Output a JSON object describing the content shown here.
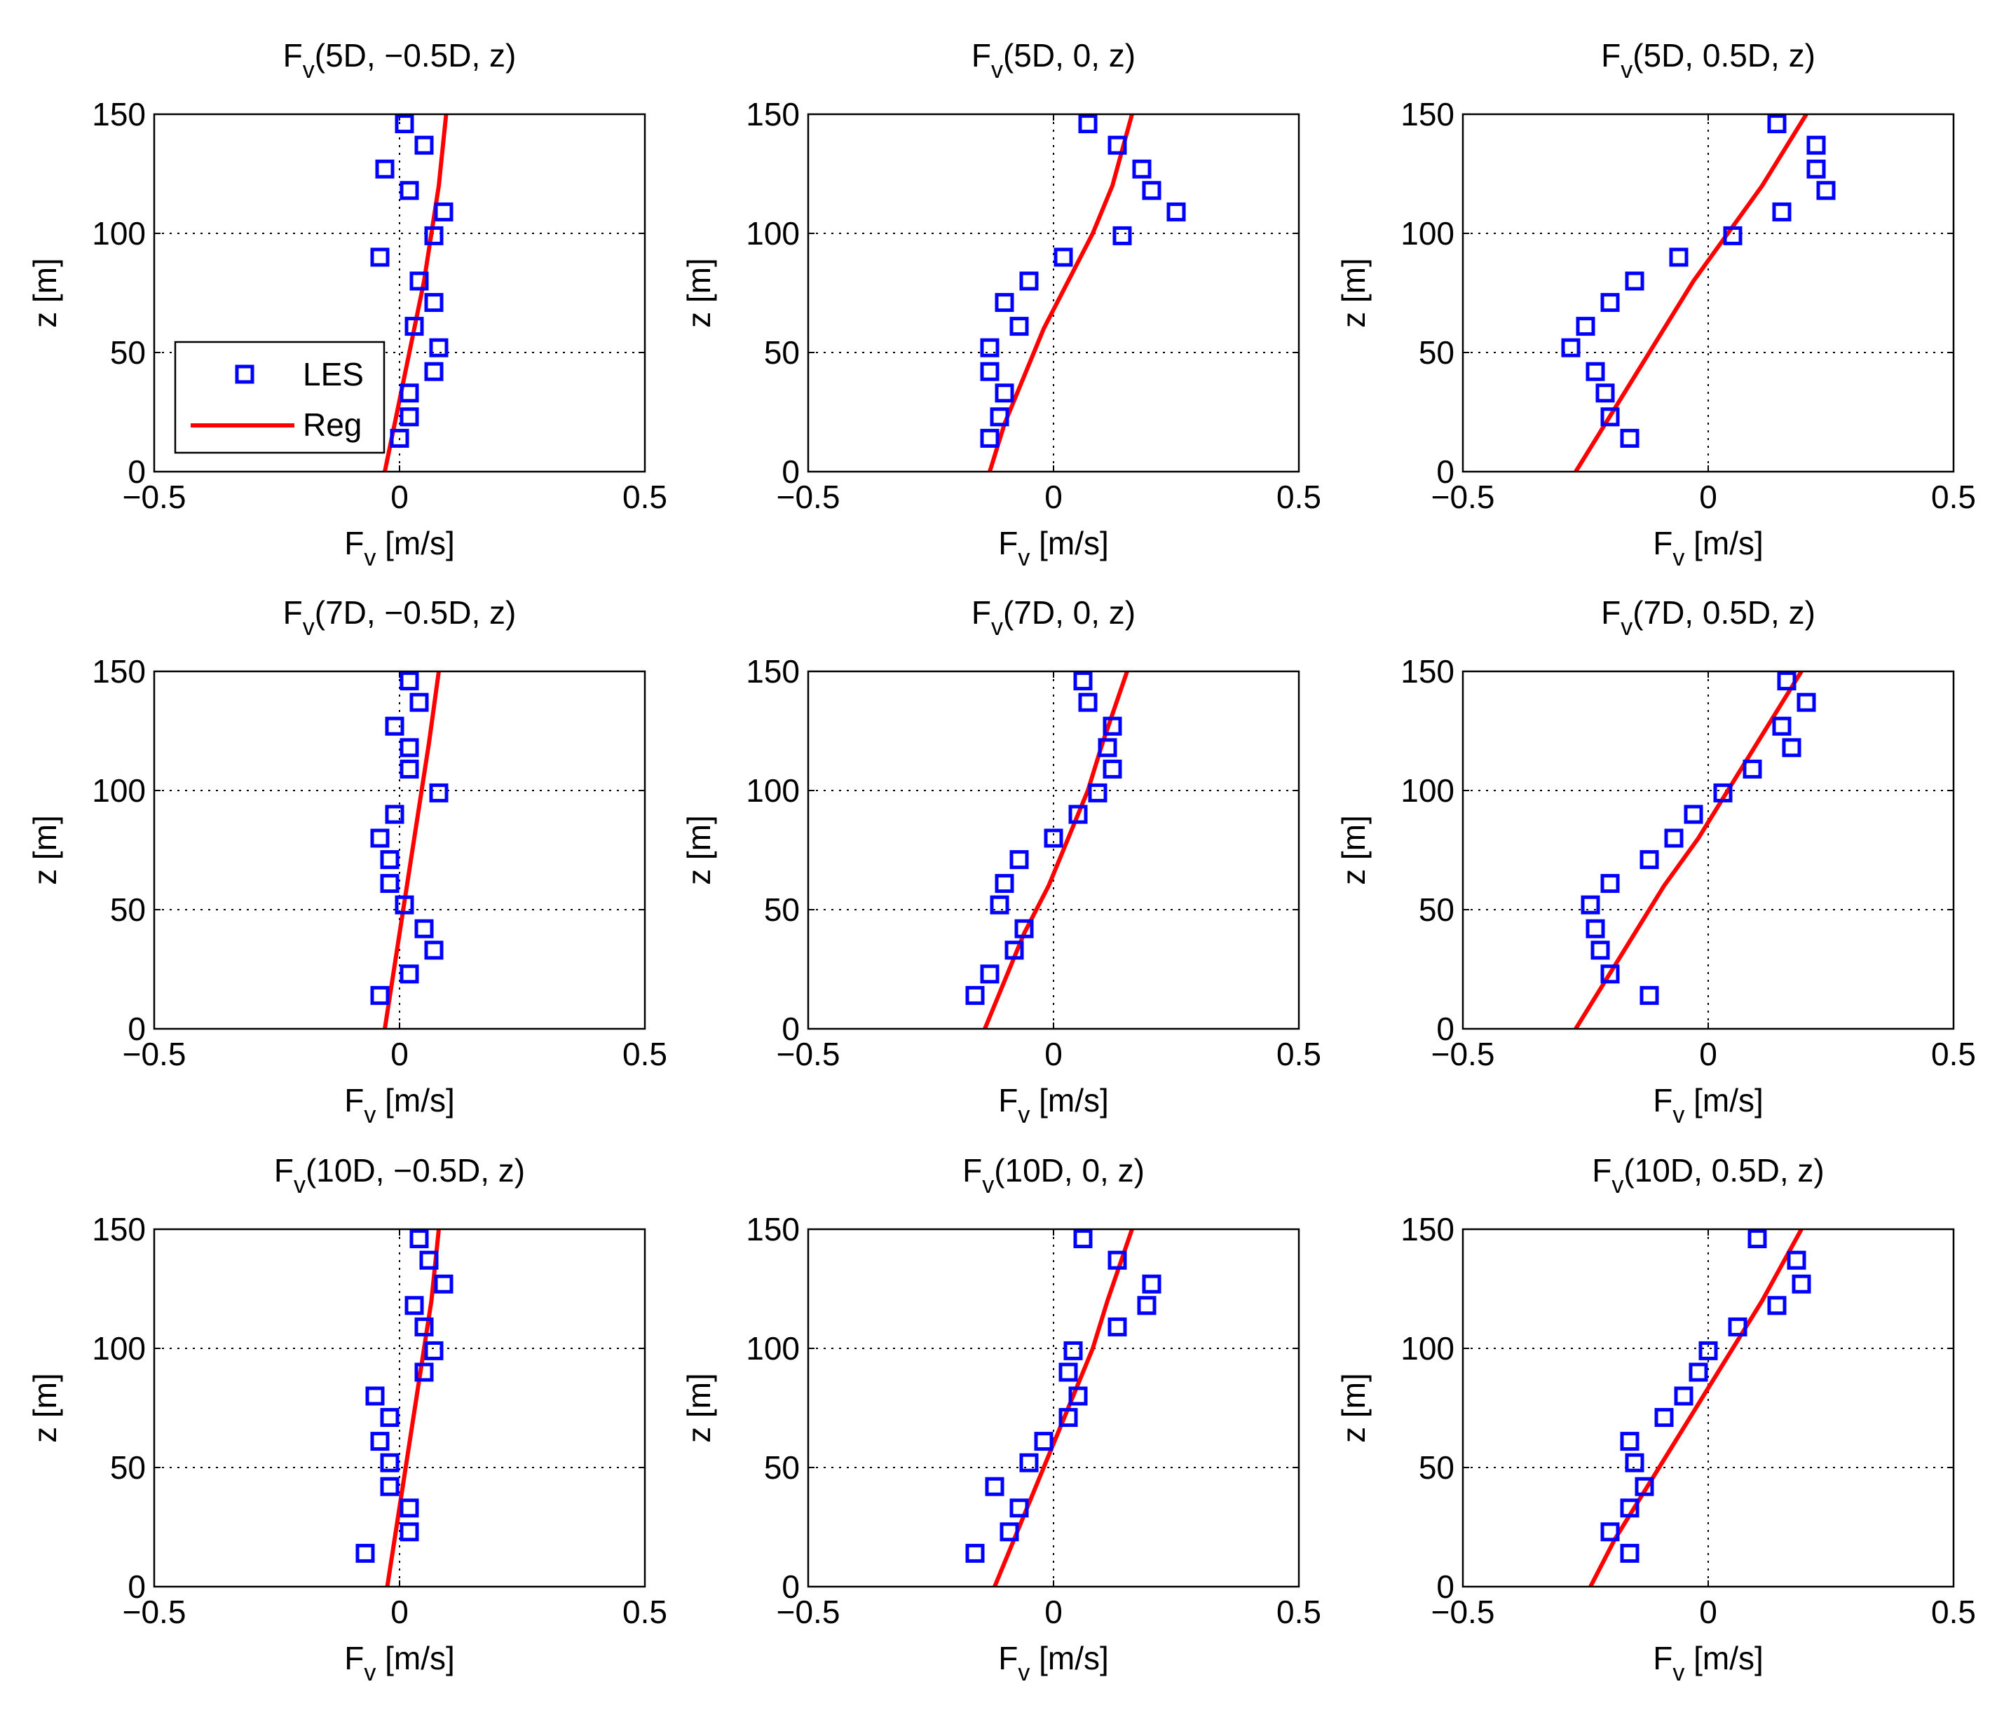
{
  "colors": {
    "les": "#0000ff",
    "reg": "#ff0000",
    "axis": "#000000",
    "grid": "#000000"
  },
  "legend": {
    "les_label": "LES",
    "reg_label": "Reg",
    "placement": "inside-left of first panel",
    "panel_index": 0
  },
  "chart_data": [
    {
      "type": "scatter",
      "title_letter": "F",
      "title_sub": "v",
      "title_args": "(5D, −0.5D, z)",
      "xlabel_letter": "F",
      "xlabel_sub": "v",
      "xlabel_unit": " [m/s]",
      "ylabel": "z [m]",
      "xlim": [
        -0.5,
        0.5
      ],
      "ylim": [
        0,
        150
      ],
      "xticks": [
        -0.5,
        0,
        0.5
      ],
      "xtick_labels": [
        "−0.5",
        "0",
        "0.5"
      ],
      "yticks": [
        0,
        50,
        100,
        150
      ],
      "ytick_labels": [
        "0",
        "50",
        "100",
        "150"
      ],
      "grid": "dotted lines at x=0 and y=50,100",
      "series": [
        {
          "name": "LES",
          "marker": "square",
          "x": [
            0.0,
            0.02,
            0.02,
            0.07,
            0.08,
            0.03,
            0.07,
            0.04,
            -0.04,
            0.07,
            0.09,
            0.02,
            -0.03,
            0.05,
            0.01
          ],
          "y": [
            14,
            23,
            33,
            42,
            52,
            61,
            71,
            80,
            90,
            99,
            109,
            118,
            127,
            137,
            146
          ]
        },
        {
          "name": "Reg",
          "style": "line",
          "x": [
            -0.03,
            -0.01,
            0.01,
            0.03,
            0.05,
            0.065,
            0.08,
            0.095
          ],
          "y": [
            0,
            20,
            40,
            60,
            80,
            100,
            120,
            150
          ]
        }
      ]
    },
    {
      "type": "scatter",
      "title_letter": "F",
      "title_sub": "v",
      "title_args": "(5D, 0, z)",
      "xlabel_letter": "F",
      "xlabel_sub": "v",
      "xlabel_unit": " [m/s]",
      "ylabel": "z [m]",
      "xlim": [
        -0.5,
        0.5
      ],
      "ylim": [
        0,
        150
      ],
      "xticks": [
        -0.5,
        0,
        0.5
      ],
      "xtick_labels": [
        "−0.5",
        "0",
        "0.5"
      ],
      "yticks": [
        0,
        50,
        100,
        150
      ],
      "ytick_labels": [
        "0",
        "50",
        "100",
        "150"
      ],
      "grid": "dotted lines at x=0 and y=50,100",
      "series": [
        {
          "name": "LES",
          "marker": "square",
          "x": [
            -0.13,
            -0.11,
            -0.1,
            -0.13,
            -0.13,
            -0.07,
            -0.1,
            -0.05,
            0.02,
            0.14,
            0.25,
            0.2,
            0.18,
            0.13,
            0.07
          ],
          "y": [
            14,
            23,
            33,
            42,
            52,
            61,
            71,
            80,
            90,
            99,
            109,
            118,
            127,
            137,
            146
          ]
        },
        {
          "name": "Reg",
          "style": "line",
          "x": [
            -0.13,
            -0.1,
            -0.06,
            -0.02,
            0.03,
            0.08,
            0.12,
            0.16
          ],
          "y": [
            0,
            20,
            40,
            60,
            80,
            100,
            120,
            150
          ]
        }
      ]
    },
    {
      "type": "scatter",
      "title_letter": "F",
      "title_sub": "v",
      "title_args": "(5D, 0.5D, z)",
      "xlabel_letter": "F",
      "xlabel_sub": "v",
      "xlabel_unit": " [m/s]",
      "ylabel": "z [m]",
      "xlim": [
        -0.5,
        0.5
      ],
      "ylim": [
        0,
        150
      ],
      "xticks": [
        -0.5,
        0,
        0.5
      ],
      "xtick_labels": [
        "−0.5",
        "0",
        "0.5"
      ],
      "yticks": [
        0,
        50,
        100,
        150
      ],
      "ytick_labels": [
        "0",
        "50",
        "100",
        "150"
      ],
      "grid": "dotted lines at x=0 and y=50,100",
      "series": [
        {
          "name": "LES",
          "marker": "square",
          "x": [
            -0.16,
            -0.2,
            -0.21,
            -0.23,
            -0.28,
            -0.25,
            -0.2,
            -0.15,
            -0.06,
            0.05,
            0.15,
            0.24,
            0.22,
            0.22,
            0.14
          ],
          "y": [
            14,
            23,
            33,
            42,
            52,
            61,
            71,
            80,
            90,
            99,
            109,
            118,
            127,
            137,
            146
          ]
        },
        {
          "name": "Reg",
          "style": "line",
          "x": [
            -0.27,
            -0.21,
            -0.15,
            -0.09,
            -0.03,
            0.04,
            0.11,
            0.2
          ],
          "y": [
            0,
            20,
            40,
            60,
            80,
            100,
            120,
            150
          ]
        }
      ]
    },
    {
      "type": "scatter",
      "title_letter": "F",
      "title_sub": "v",
      "title_args": "(7D, −0.5D, z)",
      "xlabel_letter": "F",
      "xlabel_sub": "v",
      "xlabel_unit": " [m/s]",
      "ylabel": "z [m]",
      "xlim": [
        -0.5,
        0.5
      ],
      "ylim": [
        0,
        150
      ],
      "xticks": [
        -0.5,
        0,
        0.5
      ],
      "xtick_labels": [
        "−0.5",
        "0",
        "0.5"
      ],
      "yticks": [
        0,
        50,
        100,
        150
      ],
      "ytick_labels": [
        "0",
        "50",
        "100",
        "150"
      ],
      "grid": "dotted lines at x=0 and y=50,100",
      "series": [
        {
          "name": "LES",
          "marker": "square",
          "x": [
            -0.04,
            0.02,
            0.07,
            0.05,
            0.01,
            -0.02,
            -0.02,
            -0.04,
            -0.01,
            0.08,
            0.02,
            0.02,
            -0.01,
            0.04,
            0.02
          ],
          "y": [
            14,
            23,
            33,
            42,
            52,
            61,
            71,
            80,
            90,
            99,
            109,
            118,
            127,
            137,
            146
          ]
        },
        {
          "name": "Reg",
          "style": "line",
          "x": [
            -0.03,
            -0.015,
            0.0,
            0.015,
            0.03,
            0.045,
            0.06,
            0.08
          ],
          "y": [
            0,
            20,
            40,
            60,
            80,
            100,
            120,
            150
          ]
        }
      ]
    },
    {
      "type": "scatter",
      "title_letter": "F",
      "title_sub": "v",
      "title_args": "(7D, 0, z)",
      "xlabel_letter": "F",
      "xlabel_sub": "v",
      "xlabel_unit": " [m/s]",
      "ylabel": "z [m]",
      "xlim": [
        -0.5,
        0.5
      ],
      "ylim": [
        0,
        150
      ],
      "xticks": [
        -0.5,
        0,
        0.5
      ],
      "xtick_labels": [
        "−0.5",
        "0",
        "0.5"
      ],
      "yticks": [
        0,
        50,
        100,
        150
      ],
      "ytick_labels": [
        "0",
        "50",
        "100",
        "150"
      ],
      "grid": "dotted lines at x=0 and y=50,100",
      "series": [
        {
          "name": "LES",
          "marker": "square",
          "x": [
            -0.16,
            -0.13,
            -0.08,
            -0.06,
            -0.11,
            -0.1,
            -0.07,
            0.0,
            0.05,
            0.09,
            0.12,
            0.11,
            0.12,
            0.07,
            0.06
          ],
          "y": [
            14,
            23,
            33,
            42,
            52,
            61,
            71,
            80,
            90,
            99,
            109,
            118,
            127,
            137,
            146
          ]
        },
        {
          "name": "Reg",
          "style": "line",
          "x": [
            -0.14,
            -0.1,
            -0.06,
            -0.01,
            0.03,
            0.07,
            0.1,
            0.15
          ],
          "y": [
            0,
            20,
            40,
            60,
            80,
            100,
            120,
            150
          ]
        }
      ]
    },
    {
      "type": "scatter",
      "title_letter": "F",
      "title_sub": "v",
      "title_args": "(7D, 0.5D, z)",
      "xlabel_letter": "F",
      "xlabel_sub": "v",
      "xlabel_unit": " [m/s]",
      "ylabel": "z [m]",
      "xlim": [
        -0.5,
        0.5
      ],
      "ylim": [
        0,
        150
      ],
      "xticks": [
        -0.5,
        0,
        0.5
      ],
      "xtick_labels": [
        "−0.5",
        "0",
        "0.5"
      ],
      "yticks": [
        0,
        50,
        100,
        150
      ],
      "ytick_labels": [
        "0",
        "50",
        "100",
        "150"
      ],
      "grid": "dotted lines at x=0 and y=50,100",
      "series": [
        {
          "name": "LES",
          "marker": "square",
          "x": [
            -0.12,
            -0.2,
            -0.22,
            -0.23,
            -0.24,
            -0.2,
            -0.12,
            -0.07,
            -0.03,
            0.03,
            0.09,
            0.17,
            0.15,
            0.2,
            0.16
          ],
          "y": [
            14,
            23,
            33,
            42,
            52,
            61,
            71,
            80,
            90,
            99,
            109,
            118,
            127,
            137,
            146
          ]
        },
        {
          "name": "Reg",
          "style": "line",
          "x": [
            -0.27,
            -0.21,
            -0.15,
            -0.09,
            -0.02,
            0.04,
            0.1,
            0.19
          ],
          "y": [
            0,
            20,
            40,
            60,
            80,
            100,
            120,
            150
          ]
        }
      ]
    },
    {
      "type": "scatter",
      "title_letter": "F",
      "title_sub": "v",
      "title_args": "(10D, −0.5D, z)",
      "xlabel_letter": "F",
      "xlabel_sub": "v",
      "xlabel_unit": " [m/s]",
      "ylabel": "z [m]",
      "xlim": [
        -0.5,
        0.5
      ],
      "ylim": [
        0,
        150
      ],
      "xticks": [
        -0.5,
        0,
        0.5
      ],
      "xtick_labels": [
        "−0.5",
        "0",
        "0.5"
      ],
      "yticks": [
        0,
        50,
        100,
        150
      ],
      "ytick_labels": [
        "0",
        "50",
        "100",
        "150"
      ],
      "grid": "dotted lines at x=0 and y=50,100",
      "series": [
        {
          "name": "LES",
          "marker": "square",
          "x": [
            -0.07,
            0.02,
            0.02,
            -0.02,
            -0.02,
            -0.04,
            -0.02,
            -0.05,
            0.05,
            0.07,
            0.05,
            0.03,
            0.09,
            0.06,
            0.04
          ],
          "y": [
            14,
            23,
            33,
            42,
            52,
            61,
            71,
            80,
            90,
            99,
            109,
            118,
            127,
            137,
            146
          ]
        },
        {
          "name": "Reg",
          "style": "line",
          "x": [
            -0.025,
            -0.01,
            0.005,
            0.02,
            0.035,
            0.05,
            0.065,
            0.08
          ],
          "y": [
            0,
            20,
            40,
            60,
            80,
            100,
            120,
            150
          ]
        }
      ]
    },
    {
      "type": "scatter",
      "title_letter": "F",
      "title_sub": "v",
      "title_args": "(10D, 0, z)",
      "xlabel_letter": "F",
      "xlabel_sub": "v",
      "xlabel_unit": " [m/s]",
      "ylabel": "z [m]",
      "xlim": [
        -0.5,
        0.5
      ],
      "ylim": [
        0,
        150
      ],
      "xticks": [
        -0.5,
        0,
        0.5
      ],
      "xtick_labels": [
        "−0.5",
        "0",
        "0.5"
      ],
      "yticks": [
        0,
        50,
        100,
        150
      ],
      "ytick_labels": [
        "0",
        "50",
        "100",
        "150"
      ],
      "grid": "dotted lines at x=0 and y=50,100",
      "series": [
        {
          "name": "LES",
          "marker": "square",
          "x": [
            -0.16,
            -0.09,
            -0.07,
            -0.12,
            -0.05,
            -0.02,
            0.03,
            0.05,
            0.03,
            0.04,
            0.13,
            0.19,
            0.2,
            0.13,
            0.06
          ],
          "y": [
            14,
            23,
            33,
            42,
            52,
            61,
            71,
            80,
            90,
            99,
            109,
            118,
            127,
            137,
            146
          ]
        },
        {
          "name": "Reg",
          "style": "line",
          "x": [
            -0.12,
            -0.08,
            -0.04,
            0.0,
            0.04,
            0.08,
            0.11,
            0.16
          ],
          "y": [
            0,
            20,
            40,
            60,
            80,
            100,
            120,
            150
          ]
        }
      ]
    },
    {
      "type": "scatter",
      "title_letter": "F",
      "title_sub": "v",
      "title_args": "(10D, 0.5D, z)",
      "xlabel_letter": "F",
      "xlabel_sub": "v",
      "xlabel_unit": " [m/s]",
      "ylabel": "z [m]",
      "xlim": [
        -0.5,
        0.5
      ],
      "ylim": [
        0,
        150
      ],
      "xticks": [
        -0.5,
        0,
        0.5
      ],
      "xtick_labels": [
        "−0.5",
        "0",
        "0.5"
      ],
      "yticks": [
        0,
        50,
        100,
        150
      ],
      "ytick_labels": [
        "0",
        "50",
        "100",
        "150"
      ],
      "grid": "dotted lines at x=0 and y=50,100",
      "series": [
        {
          "name": "LES",
          "marker": "square",
          "x": [
            -0.16,
            -0.2,
            -0.16,
            -0.13,
            -0.15,
            -0.16,
            -0.09,
            -0.05,
            -0.02,
            0.0,
            0.06,
            0.14,
            0.19,
            0.18,
            0.1
          ],
          "y": [
            14,
            23,
            33,
            42,
            52,
            61,
            71,
            80,
            90,
            99,
            109,
            118,
            127,
            137,
            146
          ]
        },
        {
          "name": "Reg",
          "style": "line",
          "x": [
            -0.24,
            -0.19,
            -0.13,
            -0.07,
            -0.01,
            0.05,
            0.11,
            0.19
          ],
          "y": [
            0,
            20,
            40,
            60,
            80,
            100,
            120,
            150
          ]
        }
      ]
    }
  ]
}
